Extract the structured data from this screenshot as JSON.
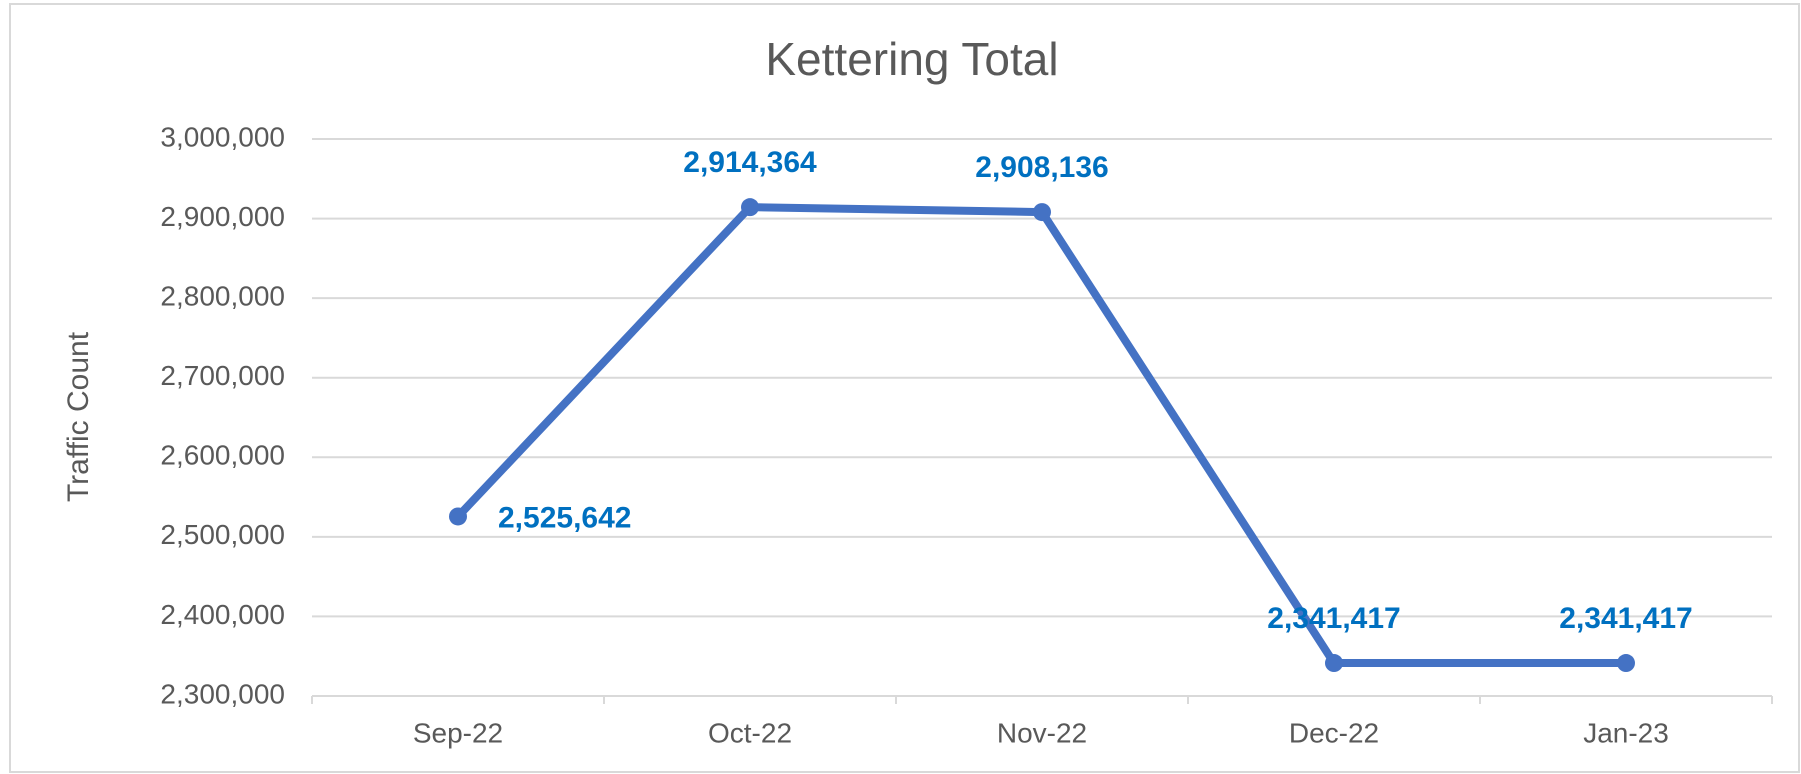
{
  "chart_data": {
    "type": "line",
    "title": "Kettering Total",
    "y_label": "Traffic Count",
    "categories": [
      "Sep-22",
      "Oct-22",
      "Nov-22",
      "Dec-22",
      "Jan-23"
    ],
    "series": [
      {
        "name": "Kettering Total",
        "color": "#4472c4",
        "values": [
          2525642,
          2914364,
          2908136,
          2341417,
          2341417
        ],
        "value_labels": [
          "2,525,642",
          "2,914,364",
          "2,908,136",
          "2,341,417",
          "2,341,417"
        ]
      }
    ],
    "label_color": "#0070c0",
    "ylim": [
      2300000,
      3000000
    ],
    "yticks": [
      {
        "value": 2300000,
        "label": "2,300,000"
      },
      {
        "value": 2400000,
        "label": "2,400,000"
      },
      {
        "value": 2500000,
        "label": "2,500,000"
      },
      {
        "value": 2600000,
        "label": "2,600,000"
      },
      {
        "value": 2700000,
        "label": "2,700,000"
      },
      {
        "value": 2800000,
        "label": "2,800,000"
      },
      {
        "value": 2900000,
        "label": "2,900,000"
      },
      {
        "value": 3000000,
        "label": "3,000,000"
      }
    ],
    "grid": true
  }
}
